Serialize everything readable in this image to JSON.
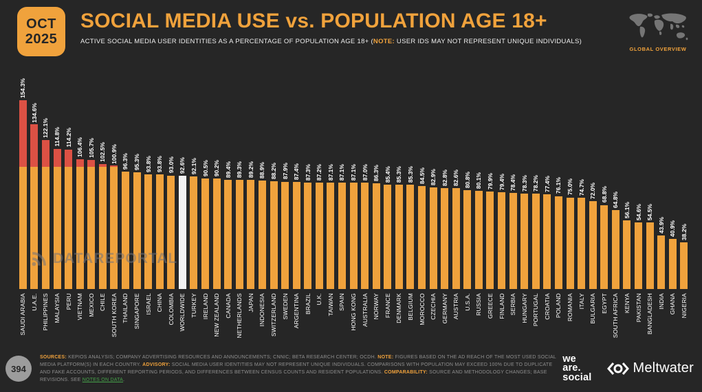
{
  "header": {
    "date_badge": {
      "month": "OCT",
      "year": "2025"
    },
    "title": "SOCIAL MEDIA USE vs. POPULATION AGE 18+",
    "subtitle_segments": [
      {
        "style": "text",
        "text": "ACTIVE SOCIAL MEDIA USER IDENTITIES AS A PERCENTAGE OF POPULATION AGE 18+ ("
      },
      {
        "style": "label",
        "text": "NOTE:"
      },
      {
        "style": "text",
        "text": " USER IDS MAY NOT REPRESENT UNIQUE INDIVIDUALS)"
      }
    ],
    "global_overview_label": "GLOBAL OVERVIEW"
  },
  "watermark": {
    "text": "DATAREPORTAL"
  },
  "chart_data": {
    "type": "bar",
    "title": "SOCIAL MEDIA USE vs. POPULATION AGE 18+",
    "unit": "%",
    "ylim": [
      0,
      160
    ],
    "grid": false,
    "legend": false,
    "threshold": 100,
    "highlight_category": "WORLDWIDE",
    "colors": {
      "bar": "#F0A23C",
      "above_threshold": "#DC5144",
      "highlight": "#F2F2F2"
    },
    "categories": [
      "SAUDI ARABIA",
      "U.A.E.",
      "PHILIPPINES",
      "MALAYSIA",
      "PERU",
      "VIETNAM",
      "MEXICO",
      "CHILE",
      "SOUTH KOREA",
      "THAILAND",
      "SINGAPORE",
      "ISRAEL",
      "CHINA",
      "COLOMBIA",
      "WORLDWIDE",
      "TURKEY",
      "IRELAND",
      "NEW ZEALAND",
      "CANADA",
      "NETHERLANDS",
      "JAPAN",
      "INDONESIA",
      "SWITZERLAND",
      "SWEDEN",
      "ARGENTINA",
      "BRAZIL",
      "U.K.",
      "TAIWAN",
      "SPAIN",
      "HONG KONG",
      "AUSTRALIA",
      "NORWAY",
      "FRANCE",
      "DENMARK",
      "BELGIUM",
      "MOROCCO",
      "CZECHIA",
      "GERMANY",
      "AUSTRIA",
      "U.S.A.",
      "RUSSIA",
      "GREECE",
      "FINLAND",
      "SERBIA",
      "HUNGARY",
      "PORTUGAL",
      "CROATIA",
      "POLAND",
      "ROMANIA",
      "ITALY",
      "BULGARIA",
      "EGYPT",
      "SOUTH AFRICA",
      "KENYA",
      "PAKISTAN",
      "BANGLADESH",
      "INDIA",
      "GHANA",
      "NIGERIA"
    ],
    "values": [
      154.3,
      134.6,
      122.1,
      114.8,
      114.2,
      106.4,
      105.7,
      102.5,
      100.9,
      96.3,
      95.3,
      93.8,
      93.8,
      93.0,
      92.6,
      92.1,
      90.5,
      90.2,
      89.4,
      89.3,
      89.2,
      88.9,
      88.2,
      87.9,
      87.4,
      87.3,
      87.2,
      87.1,
      87.1,
      87.1,
      87.0,
      86.3,
      85.4,
      85.3,
      85.3,
      84.5,
      82.9,
      82.8,
      82.6,
      80.8,
      80.1,
      79.9,
      79.4,
      78.4,
      78.3,
      78.2,
      77.4,
      76.1,
      75.0,
      74.7,
      72.0,
      68.8,
      64.8,
      56.1,
      54.6,
      54.5,
      43.9,
      40.9,
      38.2
    ]
  },
  "footer": {
    "page_number": "394",
    "notes_segments": [
      {
        "style": "label",
        "text": "SOURCES:"
      },
      {
        "style": "text",
        "text": " KEPIOS ANALYSIS; COMPANY ADVERTISING RESOURCES AND ANNOUNCEMENTS; CNNIC; BETA RESEARCH CENTER; OCDH. "
      },
      {
        "style": "label",
        "text": "NOTE:"
      },
      {
        "style": "text",
        "text": " FIGURES BASED ON THE AD REACH OF THE MOST USED SOCIAL MEDIA PLATFORM(S) IN EACH COUNTRY. "
      },
      {
        "style": "label",
        "text": "ADVISORY:"
      },
      {
        "style": "text",
        "text": " SOCIAL MEDIA USER IDENTITIES MAY NOT REPRESENT UNIQUE INDIVIDUALS. COMPARISONS WITH POPULATION MAY EXCEED 100% DUE TO DUPLICATE AND FAKE ACCOUNTS, DIFFERENT REPORTING PERIODS, AND DIFFERENCES BETWEEN CENSUS COUNTS AND RESIDENT POPULATIONS. "
      },
      {
        "style": "label",
        "text": "COMPARABILITY:"
      },
      {
        "style": "text",
        "text": " SOURCE AND METHODOLOGY CHANGES; BASE REVISIONS. SEE "
      },
      {
        "style": "link",
        "text": "NOTES ON DATA"
      },
      {
        "style": "text",
        "text": "."
      }
    ],
    "brand_we_are_social": [
      "we",
      "are.",
      "social"
    ],
    "brand_meltwater": "Meltwater"
  },
  "colors": {
    "background": "#262626",
    "accent_orange": "#F0A23C",
    "accent_red": "#DC5144",
    "worldwide_bar": "#F2F2F2",
    "footer_text": "#8F8F8F",
    "link_green": "#46A24A"
  }
}
